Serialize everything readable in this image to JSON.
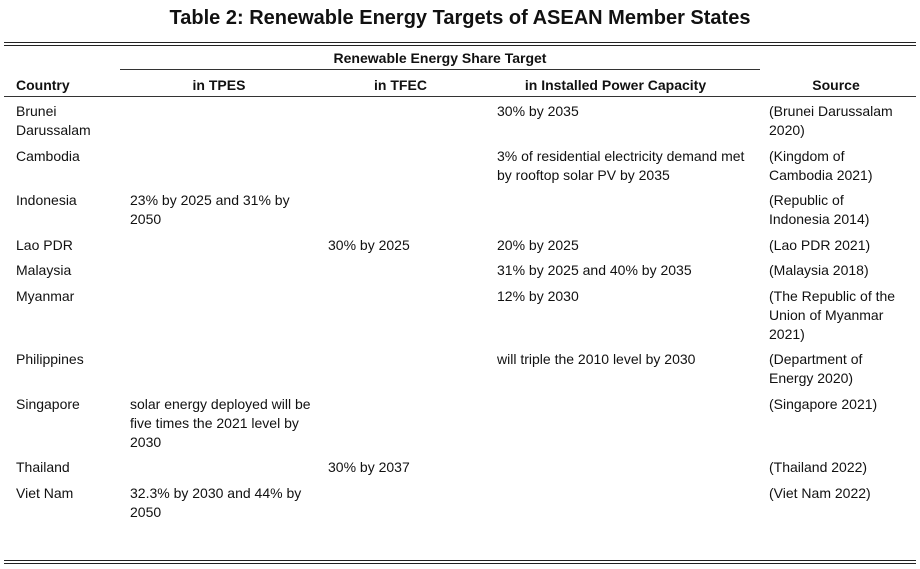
{
  "title": "Table 2: Renewable Energy Targets of ASEAN Member States",
  "group_header": "Renewable Energy Share Target",
  "headers": {
    "country": "Country",
    "tpes": "in TPES",
    "tfec": "in TFEC",
    "installed": "in Installed Power Capacity",
    "source": "Source"
  },
  "rows": [
    {
      "country": "Brunei Darussalam",
      "tpes": "",
      "tfec": "",
      "installed": "30% by 2035",
      "source": "(Brunei Darussalam 2020)"
    },
    {
      "country": "Cambodia",
      "tpes": "",
      "tfec": "",
      "installed": "3% of residential electricity demand met by rooftop solar PV by 2035",
      "source": "(Kingdom of Cambodia 2021)"
    },
    {
      "country": "Indonesia",
      "tpes": "23% by 2025 and 31% by 2050",
      "tfec": "",
      "installed": "",
      "source": "(Republic of Indonesia 2014)"
    },
    {
      "country": "Lao PDR",
      "tpes": "",
      "tfec": "30% by 2025",
      "installed": "20% by 2025",
      "source": "(Lao PDR 2021)"
    },
    {
      "country": "Malaysia",
      "tpes": "",
      "tfec": "",
      "installed": "31% by 2025 and 40% by 2035",
      "source": "(Malaysia 2018)"
    },
    {
      "country": "Myanmar",
      "tpes": "",
      "tfec": "",
      "installed": "12% by 2030",
      "source": "(The Republic of the Union of Myanmar 2021)"
    },
    {
      "country": "Philippines",
      "tpes": "",
      "tfec": "",
      "installed": "will triple the 2010 level by 2030",
      "source": "(Department of Energy 2020)"
    },
    {
      "country": "Singapore",
      "tpes": "solar energy deployed will be five times the 2021 level by 2030",
      "tfec": "",
      "installed": "",
      "source": "(Singapore 2021)"
    },
    {
      "country": "Thailand",
      "tpes": "",
      "tfec": "30% by 2037",
      "installed": "",
      "source": "(Thailand 2022)"
    },
    {
      "country": "Viet Nam",
      "tpes": "32.3% by 2030 and 44% by 2050",
      "tfec": "",
      "installed": "",
      "source": "(Viet Nam 2022)"
    }
  ]
}
